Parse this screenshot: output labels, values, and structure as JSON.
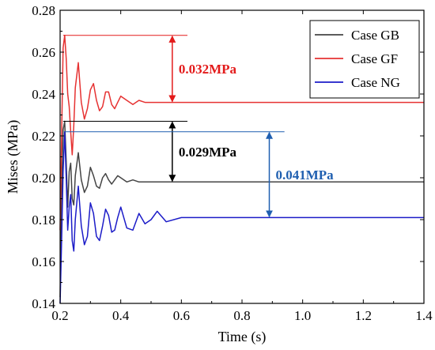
{
  "chart_data": {
    "type": "line",
    "xlabel": "Time (s)",
    "ylabel": "Mises (MPa)",
    "xlim": [
      0.2,
      1.4
    ],
    "ylim": [
      0.14,
      0.28
    ],
    "x_ticks": [
      "0.2",
      "0.4",
      "0.6",
      "0.8",
      "1.0",
      "1.2",
      "1.4"
    ],
    "y_ticks": [
      "0.14",
      "0.16",
      "0.18",
      "0.20",
      "0.22",
      "0.24",
      "0.26",
      "0.28"
    ],
    "legend_position": "top-right",
    "grid": false,
    "series": [
      {
        "name": "Case GB",
        "color": "#444444",
        "x": [
          0.2,
          0.205,
          0.21,
          0.215,
          0.22,
          0.225,
          0.23,
          0.235,
          0.24,
          0.245,
          0.25,
          0.26,
          0.27,
          0.28,
          0.29,
          0.3,
          0.31,
          0.32,
          0.33,
          0.34,
          0.35,
          0.36,
          0.37,
          0.38,
          0.39,
          0.4,
          0.42,
          0.44,
          0.46,
          0.48,
          0.5,
          0.55,
          0.6,
          0.7,
          0.8,
          0.9,
          1.0,
          1.2,
          1.4
        ],
        "y": [
          0.143,
          0.19,
          0.223,
          0.227,
          0.208,
          0.186,
          0.203,
          0.207,
          0.19,
          0.187,
          0.201,
          0.212,
          0.199,
          0.193,
          0.196,
          0.205,
          0.201,
          0.196,
          0.195,
          0.2,
          0.202,
          0.199,
          0.197,
          0.199,
          0.201,
          0.2,
          0.198,
          0.199,
          0.198,
          0.198,
          0.198,
          0.198,
          0.198,
          0.198,
          0.198,
          0.198,
          0.198,
          0.198,
          0.198
        ]
      },
      {
        "name": "Case GF",
        "color": "#e63232",
        "x": [
          0.2,
          0.205,
          0.21,
          0.215,
          0.22,
          0.225,
          0.23,
          0.235,
          0.24,
          0.245,
          0.25,
          0.26,
          0.27,
          0.28,
          0.29,
          0.3,
          0.31,
          0.32,
          0.33,
          0.34,
          0.35,
          0.36,
          0.37,
          0.38,
          0.39,
          0.4,
          0.42,
          0.44,
          0.46,
          0.48,
          0.5,
          0.55,
          0.6,
          0.7,
          0.8,
          0.9,
          1.0,
          1.2,
          1.4
        ],
        "y": [
          0.175,
          0.22,
          0.262,
          0.268,
          0.257,
          0.24,
          0.234,
          0.222,
          0.211,
          0.225,
          0.243,
          0.255,
          0.236,
          0.228,
          0.233,
          0.242,
          0.245,
          0.237,
          0.232,
          0.234,
          0.241,
          0.241,
          0.235,
          0.233,
          0.236,
          0.239,
          0.237,
          0.235,
          0.237,
          0.236,
          0.236,
          0.236,
          0.236,
          0.236,
          0.236,
          0.236,
          0.236,
          0.236,
          0.236
        ]
      },
      {
        "name": "Case NG",
        "color": "#1c1cc8",
        "x": [
          0.2,
          0.205,
          0.21,
          0.215,
          0.22,
          0.225,
          0.23,
          0.235,
          0.24,
          0.245,
          0.25,
          0.26,
          0.27,
          0.28,
          0.29,
          0.3,
          0.31,
          0.32,
          0.33,
          0.34,
          0.35,
          0.36,
          0.37,
          0.38,
          0.39,
          0.4,
          0.42,
          0.44,
          0.46,
          0.48,
          0.5,
          0.52,
          0.55,
          0.6,
          0.7,
          0.8,
          0.9,
          1.0,
          1.2,
          1.4
        ],
        "y": [
          0.14,
          0.17,
          0.203,
          0.222,
          0.2,
          0.175,
          0.186,
          0.192,
          0.17,
          0.165,
          0.18,
          0.196,
          0.177,
          0.168,
          0.172,
          0.188,
          0.183,
          0.172,
          0.17,
          0.177,
          0.185,
          0.182,
          0.174,
          0.175,
          0.181,
          0.186,
          0.176,
          0.175,
          0.183,
          0.178,
          0.18,
          0.184,
          0.179,
          0.181,
          0.181,
          0.181,
          0.181,
          0.181,
          0.181,
          0.181
        ]
      }
    ],
    "annotations": [
      {
        "label": "0.032MPa",
        "color": "#e31a1a",
        "y_from": 0.268,
        "y_to": 0.236,
        "x_arrow": 0.57,
        "x_ref_from": 0.21,
        "x_ref_to": 0.62
      },
      {
        "label": "0.029MPa",
        "color": "#000000",
        "y_from": 0.227,
        "y_to": 0.198,
        "x_arrow": 0.57,
        "x_ref_from": 0.21,
        "x_ref_to": 0.62
      },
      {
        "label": "0.041MPa",
        "color": "#1f5fb0",
        "y_from": 0.222,
        "y_to": 0.181,
        "x_arrow": 0.89,
        "x_ref_from": 0.215,
        "x_ref_to": 0.94
      }
    ]
  }
}
